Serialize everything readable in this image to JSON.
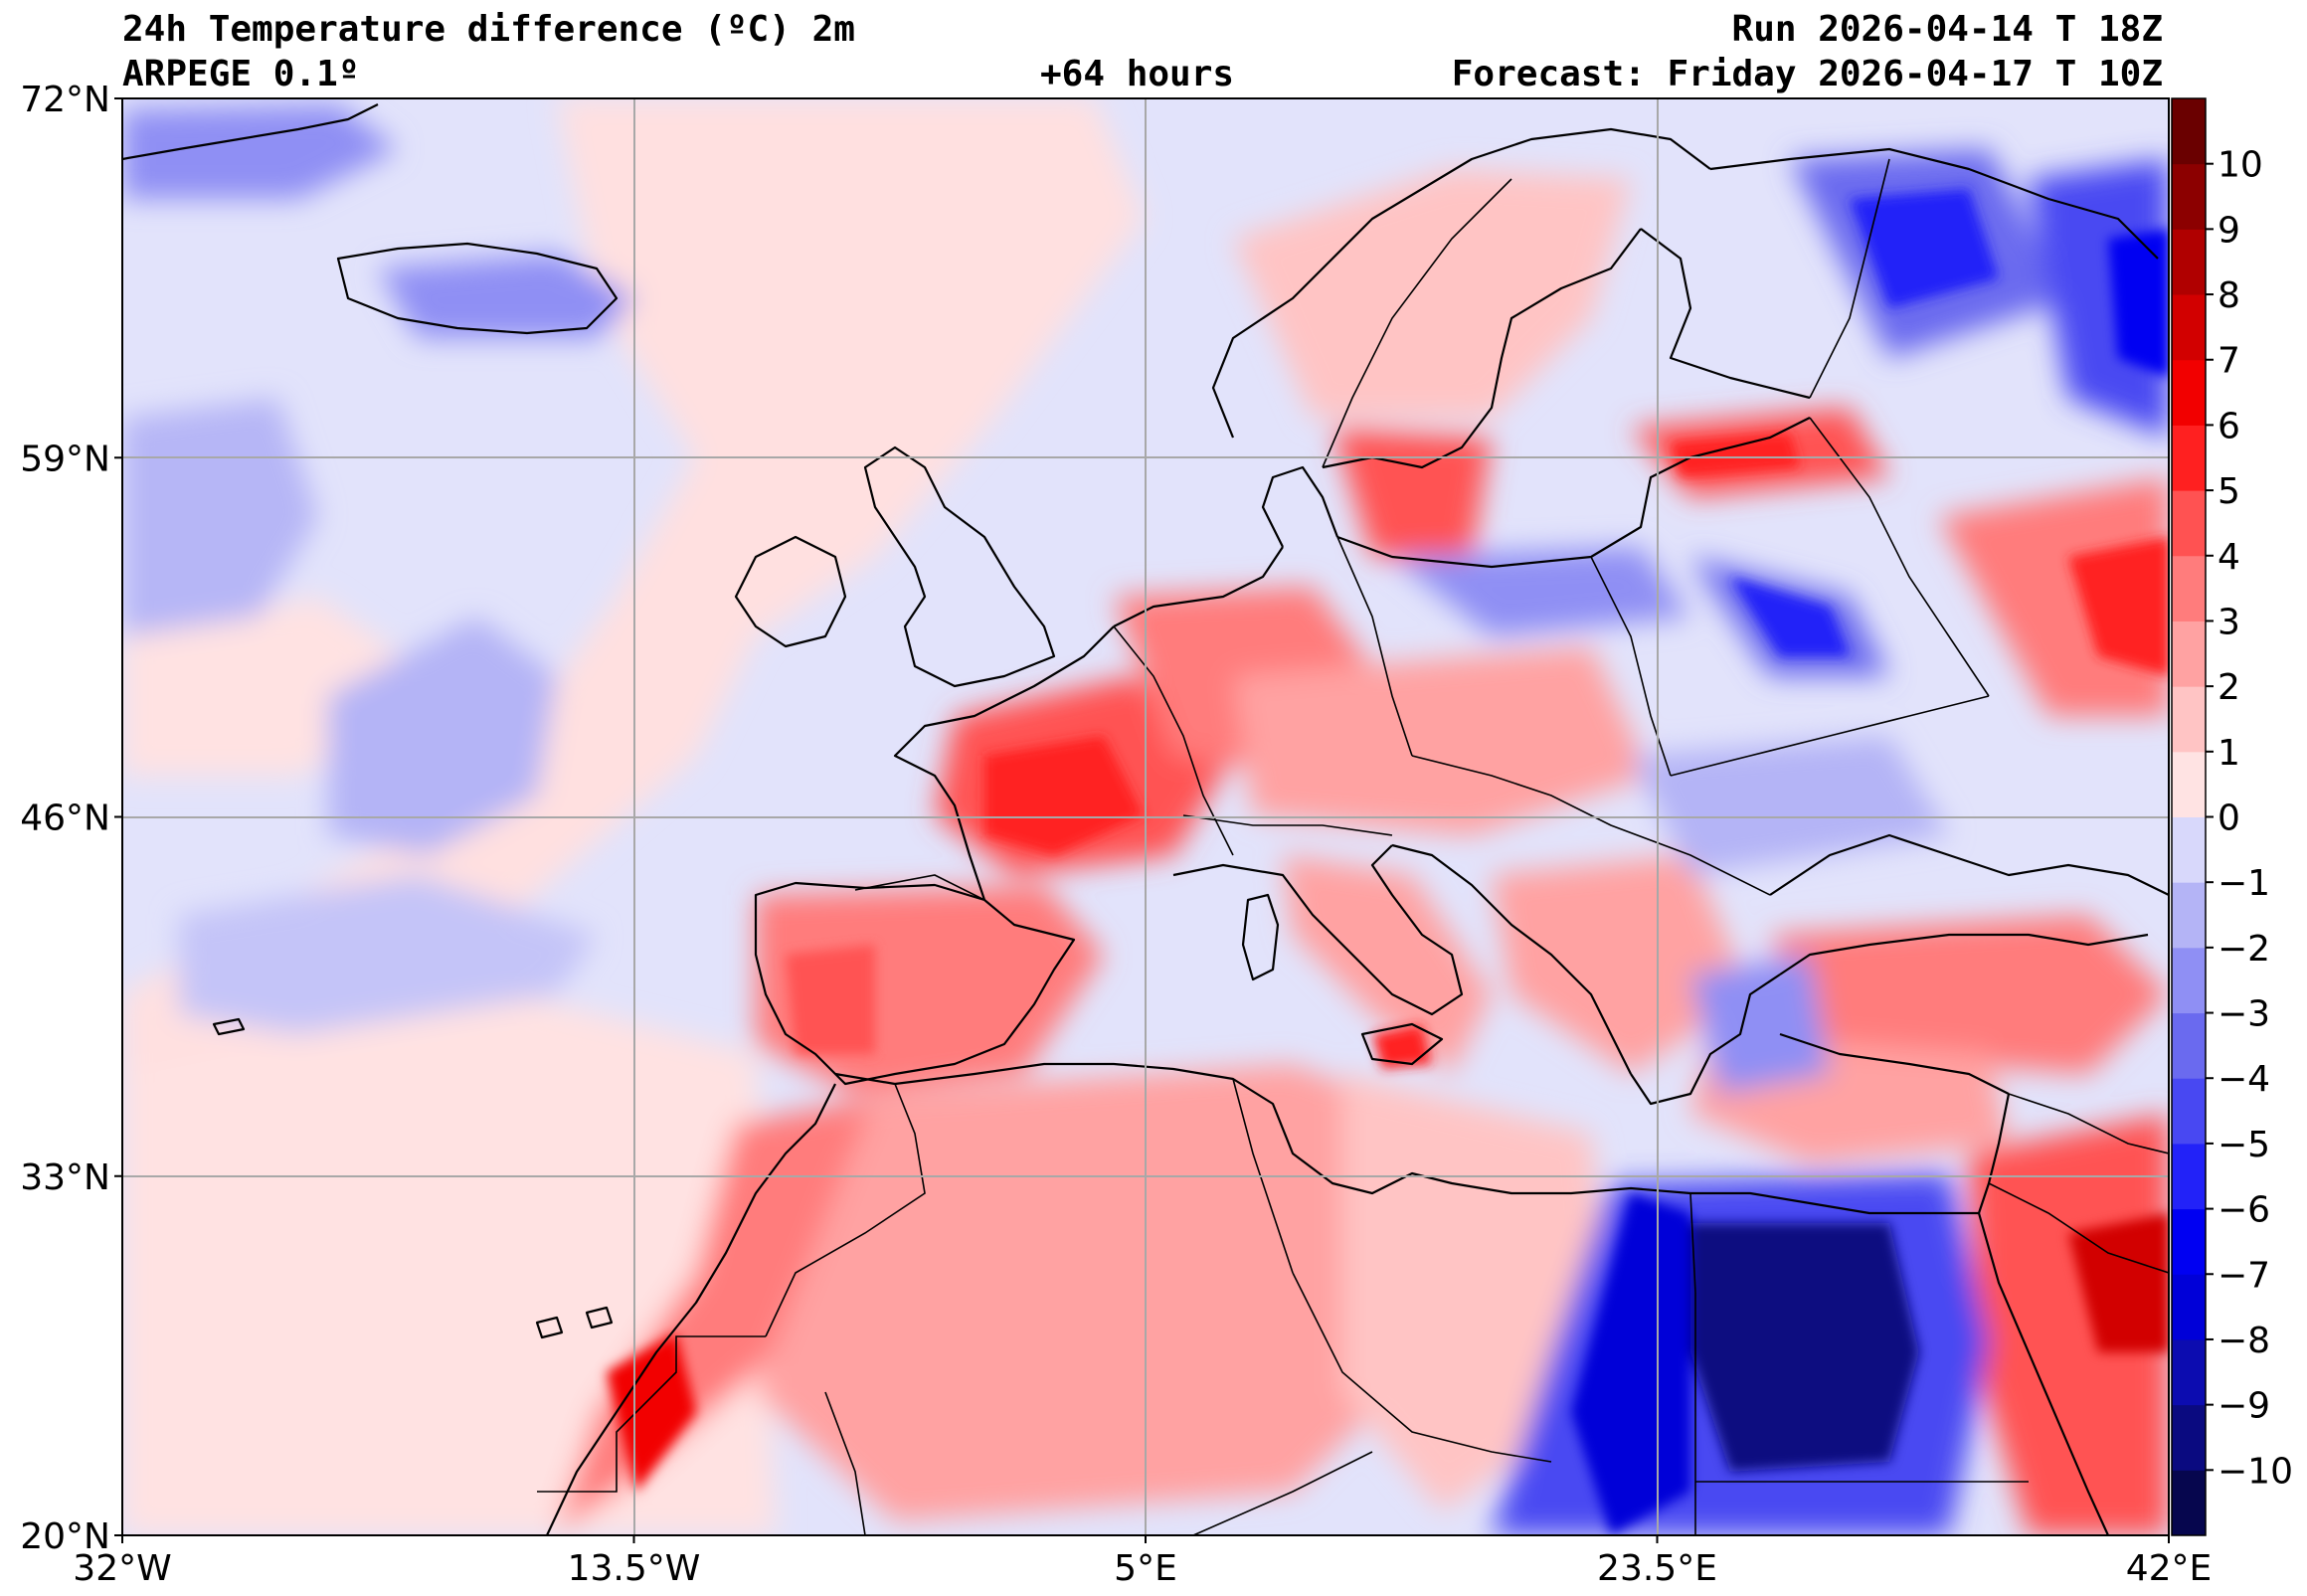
{
  "header": {
    "title_line1": "24h Temperature difference (ºC) 2m",
    "title_line2": "ARPEGE 0.1º",
    "lead_time": "+64 hours",
    "run": "Run 2026-04-14 T 18Z",
    "forecast": "Forecast: Friday 2026-04-17 T 10Z"
  },
  "map": {
    "projection": "plate-carree",
    "lon_range": [
      -32,
      42
    ],
    "lat_range": [
      20,
      72
    ],
    "lat_ticks": [
      {
        "value": 72,
        "label": "72°N"
      },
      {
        "value": 59,
        "label": "59°N"
      },
      {
        "value": 46,
        "label": "46°N"
      },
      {
        "value": 33,
        "label": "33°N"
      },
      {
        "value": 20,
        "label": "20°N"
      }
    ],
    "lon_ticks": [
      {
        "value": -32,
        "label": "32°W"
      },
      {
        "value": -13.5,
        "label": "13.5°W"
      },
      {
        "value": 5,
        "label": "5°E"
      },
      {
        "value": 23.5,
        "label": "23.5°E"
      },
      {
        "value": 42,
        "label": "42°E"
      }
    ],
    "grid": true,
    "background_color": "#e2e3fb",
    "coast_color": "#000000"
  },
  "colorbar": {
    "range": [
      -11,
      11
    ],
    "levels": [
      -11,
      -10,
      -9,
      -8,
      -7,
      -6,
      -5,
      -4,
      -3,
      -2,
      -1,
      0,
      1,
      2,
      3,
      4,
      5,
      6,
      7,
      8,
      9,
      10,
      11
    ],
    "colors": [
      "#06064e",
      "#0a0a80",
      "#0c0cb0",
      "#0000d8",
      "#0000f2",
      "#2222f8",
      "#4848f2",
      "#6a6aef",
      "#8f8ff4",
      "#b4b4f6",
      "#d8d8fb",
      "#ffe3e3",
      "#ffc4c4",
      "#ffa2a2",
      "#ff7c7c",
      "#ff5252",
      "#ff2020",
      "#f20000",
      "#d20000",
      "#b00000",
      "#8c0000",
      "#6a0000"
    ],
    "tick_labels": [
      {
        "value": 10,
        "label": "10"
      },
      {
        "value": 9,
        "label": "9"
      },
      {
        "value": 8,
        "label": "8"
      },
      {
        "value": 7,
        "label": "7"
      },
      {
        "value": 6,
        "label": "6"
      },
      {
        "value": 5,
        "label": "5"
      },
      {
        "value": 4,
        "label": "4"
      },
      {
        "value": 3,
        "label": "3"
      },
      {
        "value": 2,
        "label": "2"
      },
      {
        "value": 1,
        "label": "1"
      },
      {
        "value": 0,
        "label": "0"
      },
      {
        "value": -1,
        "label": "−1"
      },
      {
        "value": -2,
        "label": "−2"
      },
      {
        "value": -3,
        "label": "−3"
      },
      {
        "value": -4,
        "label": "−4"
      },
      {
        "value": -5,
        "label": "−5"
      },
      {
        "value": -6,
        "label": "−6"
      },
      {
        "value": -7,
        "label": "−7"
      },
      {
        "value": -8,
        "label": "−8"
      },
      {
        "value": -9,
        "label": "−9"
      },
      {
        "value": -10,
        "label": "−10"
      }
    ]
  }
}
